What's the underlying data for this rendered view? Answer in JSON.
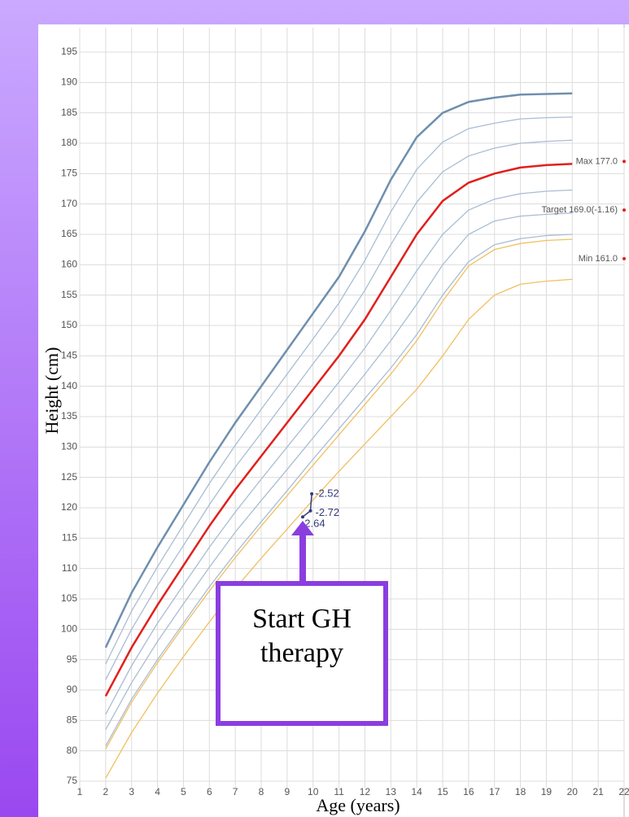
{
  "chart_data": {
    "type": "line",
    "xlabel": "Age (years)",
    "ylabel": "Height (cm)",
    "xlim": [
      1,
      22
    ],
    "ylim": [
      75,
      195
    ],
    "xticks": [
      1,
      2,
      3,
      4,
      5,
      6,
      7,
      8,
      9,
      10,
      11,
      12,
      13,
      14,
      15,
      16,
      17,
      18,
      19,
      20,
      21,
      22
    ],
    "yticks": [
      75,
      80,
      85,
      90,
      95,
      100,
      105,
      110,
      115,
      120,
      125,
      130,
      135,
      140,
      145,
      150,
      155,
      160,
      165,
      170,
      175,
      180,
      185,
      190,
      195
    ],
    "grid": true,
    "x": [
      2,
      3,
      4,
      5,
      6,
      7,
      8,
      9,
      10,
      11,
      12,
      13,
      14,
      15,
      16,
      17,
      18,
      19,
      20
    ],
    "series": [
      {
        "color": "#6f8fae",
        "width": 2.5,
        "values": [
          97,
          106,
          113.5,
          120.5,
          127.5,
          134,
          140,
          146,
          152,
          158,
          165.5,
          174,
          181,
          185,
          186.8,
          187.5,
          188,
          188.1,
          188.2
        ]
      },
      {
        "color": "#a9bdd3",
        "width": 1.3,
        "values": [
          94.3,
          103,
          110.3,
          117.2,
          124,
          130.3,
          136.2,
          142,
          147.8,
          153.7,
          160.7,
          168.7,
          175.7,
          180.2,
          182.4,
          183.3,
          184,
          184.2,
          184.3
        ]
      },
      {
        "color": "#a9bdd3",
        "width": 1.3,
        "values": [
          91.7,
          100,
          107.2,
          113.8,
          120.5,
          126.7,
          132.3,
          138,
          143.7,
          149.3,
          155.8,
          163.3,
          170.3,
          175.3,
          177.9,
          179.2,
          180,
          180.3,
          180.5
        ]
      },
      {
        "color": "#e0201c",
        "width": 2.5,
        "values": [
          89,
          97,
          104,
          110.5,
          117,
          123,
          128.5,
          134,
          139.5,
          145,
          151,
          158,
          165,
          170.5,
          173.5,
          175,
          176,
          176.4,
          176.6
        ]
      },
      {
        "color": "#a9bdd3",
        "width": 1.3,
        "values": [
          86,
          94,
          101,
          107.3,
          113.5,
          119.3,
          124.7,
          130,
          135.3,
          140.7,
          146.3,
          152.5,
          159,
          165,
          169,
          170.8,
          171.7,
          172.1,
          172.3
        ]
      },
      {
        "color": "#a9bdd3",
        "width": 1.3,
        "values": [
          83.5,
          91.2,
          98,
          104.2,
          110.2,
          116,
          121.2,
          126.3,
          131.5,
          136.7,
          142,
          147.5,
          153.5,
          160,
          165,
          167.2,
          168,
          168.3,
          168.5
        ]
      },
      {
        "color": "#a9bdd3",
        "width": 1.3,
        "values": [
          80.8,
          88.5,
          95,
          101,
          107,
          112.5,
          117.7,
          122.8,
          128,
          133,
          138,
          143,
          148.5,
          155,
          160.5,
          163.3,
          164.3,
          164.8,
          165
        ]
      },
      {
        "color": "#f0c060",
        "width": 1.3,
        "values": [
          80.3,
          88,
          94.5,
          100.5,
          106.3,
          111.8,
          117,
          122,
          127,
          132,
          137,
          142,
          147.5,
          154,
          159.8,
          162.5,
          163.5,
          164,
          164.2
        ]
      },
      {
        "color": "#f0c060",
        "width": 1.3,
        "values": [
          75.5,
          83,
          89.5,
          95.5,
          101.2,
          106.7,
          111.7,
          116.5,
          121.3,
          126,
          130.5,
          135,
          139.5,
          145,
          151,
          155,
          156.8,
          157.3,
          157.6
        ]
      }
    ],
    "patient": {
      "color": "#333a7a",
      "x": [
        9.6,
        9.9,
        9.95
      ],
      "values": [
        118.5,
        119.5,
        122.3
      ],
      "labels": [
        "-2.64",
        "-2.72",
        "-2.52"
      ]
    },
    "targets": [
      {
        "label": "Max 177.0",
        "value": 177
      },
      {
        "label": "Target 169.0(-1.16)",
        "value": 169
      },
      {
        "label": "Min 161.0",
        "value": 161
      }
    ],
    "callout": {
      "lines": [
        "Start GH",
        "therapy"
      ],
      "color": "#8a3ee0"
    }
  }
}
